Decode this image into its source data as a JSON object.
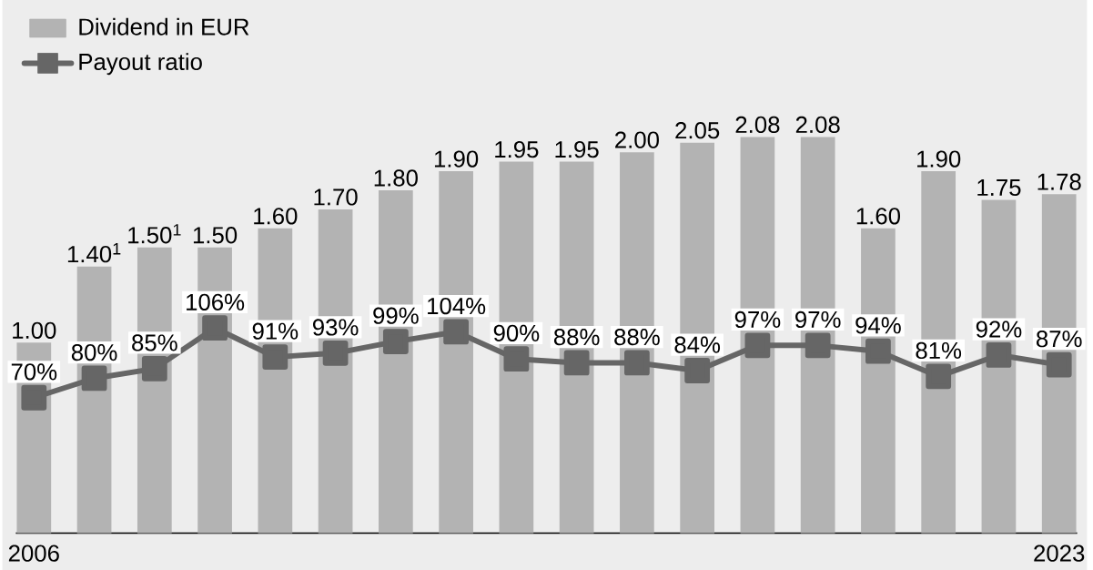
{
  "chart_data": {
    "type": "bar",
    "categories": [
      "2006",
      null,
      null,
      null,
      null,
      null,
      null,
      null,
      null,
      null,
      null,
      null,
      null,
      null,
      null,
      null,
      null,
      "2023"
    ],
    "series": [
      {
        "name": "Dividend in EUR",
        "color": "#b3b3b3",
        "values": [
          1.0,
          1.4,
          1.5,
          1.5,
          1.6,
          1.7,
          1.8,
          1.9,
          1.95,
          1.95,
          2.0,
          2.05,
          2.08,
          2.08,
          1.6,
          1.9,
          1.75,
          1.78
        ],
        "value_labels": [
          "1.00",
          "1.40$^{1}$",
          "1.50$^{1}$",
          "1.50",
          "1.60",
          "1.70",
          "1.80",
          "1.90",
          "1.95",
          "1.95",
          "2.00",
          "2.05",
          "2.08",
          "2.08",
          "1.60",
          "1.90",
          "1.75",
          "1.78"
        ]
      },
      {
        "name": "Payout ratio",
        "type": "line",
        "axis": "y2",
        "color": "#666666",
        "values": [
          70,
          80,
          85,
          106,
          91,
          93,
          99,
          104,
          90,
          88,
          88,
          84,
          97,
          97,
          94,
          81,
          92,
          87
        ],
        "value_labels": [
          "70%",
          "80%",
          "85%",
          "106%",
          "91%",
          "93%",
          "99%",
          "104%",
          "90%",
          "88%",
          "88%",
          "84%",
          "97%",
          "97%",
          "94%",
          "81%",
          "92%",
          "87%"
        ]
      }
    ],
    "tick_labels": "x",
    "legend": "top left",
    "marker": "square",
    "line_style": "solid"
  }
}
